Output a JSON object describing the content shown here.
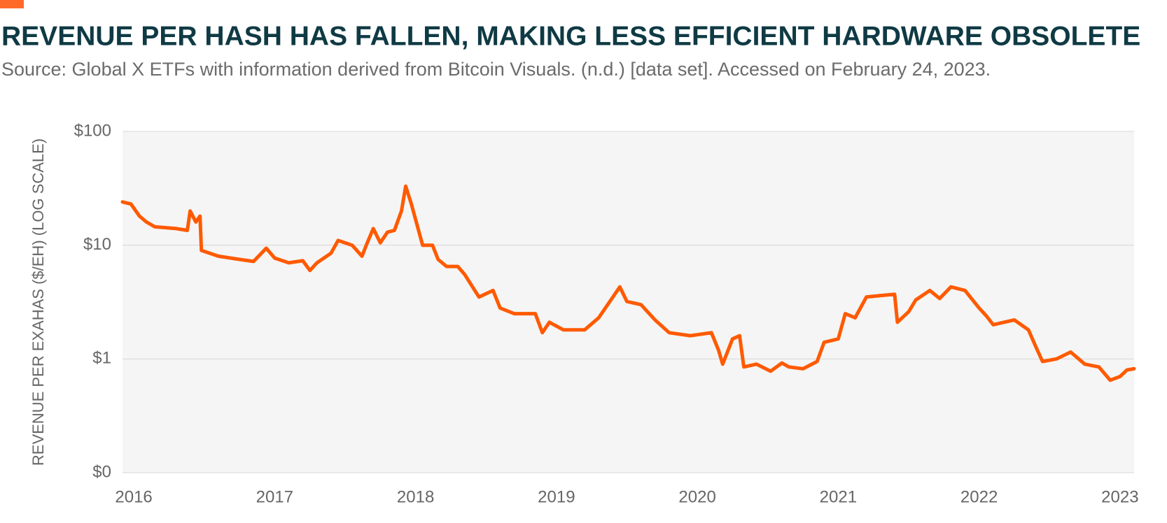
{
  "chart_data": {
    "type": "line",
    "title": "REVENUE PER HASH HAS FALLEN, MAKING LESS EFFICIENT HARDWARE OBSOLETE",
    "subtitle": "Source: Global X ETFs with information derived from Bitcoin Visuals. (n.d.) [data set]. Accessed on February 24, 2023.",
    "y_label": "REVENUE PER EXAHAS ($/EH) (LOG SCALE)",
    "log_y": true,
    "grid": true,
    "xlim": [
      2015.92,
      2023.1
    ],
    "xticks": [
      2016,
      2017,
      2018,
      2019,
      2020,
      2021,
      2022,
      2023
    ],
    "ylim": [
      0.1,
      100
    ],
    "yticks": [
      {
        "value": 0.1,
        "label": "$0"
      },
      {
        "value": 1,
        "label": "$1"
      },
      {
        "value": 10,
        "label": "$10"
      },
      {
        "value": 100,
        "label": "$100"
      }
    ],
    "series": [
      {
        "name": "Revenue per EH",
        "color": "#ff5a00",
        "x": [
          2015.92,
          2015.98,
          2016.04,
          2016.09,
          2016.15,
          2016.3,
          2016.38,
          2016.4,
          2016.44,
          2016.47,
          2016.48,
          2016.6,
          2016.75,
          2016.85,
          2016.94,
          2017.0,
          2017.1,
          2017.2,
          2017.25,
          2017.3,
          2017.4,
          2017.45,
          2017.55,
          2017.62,
          2017.65,
          2017.7,
          2017.75,
          2017.8,
          2017.85,
          2017.9,
          2017.93,
          2017.97,
          2018.05,
          2018.12,
          2018.16,
          2018.22,
          2018.3,
          2018.35,
          2018.45,
          2018.55,
          2018.6,
          2018.7,
          2018.85,
          2018.9,
          2018.95,
          2019.05,
          2019.2,
          2019.3,
          2019.45,
          2019.5,
          2019.6,
          2019.7,
          2019.8,
          2019.95,
          2020.1,
          2020.15,
          2020.18,
          2020.25,
          2020.3,
          2020.33,
          2020.42,
          2020.52,
          2020.6,
          2020.65,
          2020.75,
          2020.85,
          2020.9,
          2021.0,
          2021.05,
          2021.12,
          2021.2,
          2021.3,
          2021.4,
          2021.42,
          2021.5,
          2021.55,
          2021.65,
          2021.72,
          2021.8,
          2021.9,
          2022.0,
          2022.05,
          2022.1,
          2022.25,
          2022.35,
          2022.4,
          2022.45,
          2022.55,
          2022.65,
          2022.75,
          2022.85,
          2022.93,
          2023.0,
          2023.05,
          2023.1
        ],
        "values": [
          24,
          23,
          18,
          16,
          14.5,
          14,
          13.5,
          20,
          16,
          18,
          9,
          8,
          7.5,
          7.2,
          9.4,
          7.7,
          7,
          7.3,
          6,
          7,
          8.5,
          11,
          10,
          8,
          10,
          14,
          10.5,
          13,
          13.5,
          20,
          33,
          23,
          10,
          10,
          7.5,
          6.5,
          6.5,
          5.5,
          3.5,
          4,
          2.8,
          2.5,
          2.5,
          1.7,
          2.1,
          1.8,
          1.8,
          2.3,
          4.3,
          3.2,
          3.0,
          2.2,
          1.7,
          1.6,
          1.7,
          1.2,
          0.9,
          1.5,
          1.6,
          0.85,
          0.9,
          0.78,
          0.92,
          0.85,
          0.82,
          0.95,
          1.4,
          1.5,
          2.5,
          2.3,
          3.5,
          3.6,
          3.7,
          2.1,
          2.6,
          3.3,
          4.0,
          3.4,
          4.3,
          4.0,
          2.8,
          2.4,
          2.0,
          2.2,
          1.8,
          1.3,
          0.95,
          1.0,
          1.15,
          0.9,
          0.85,
          0.65,
          0.7,
          0.8,
          0.82
        ]
      }
    ]
  }
}
